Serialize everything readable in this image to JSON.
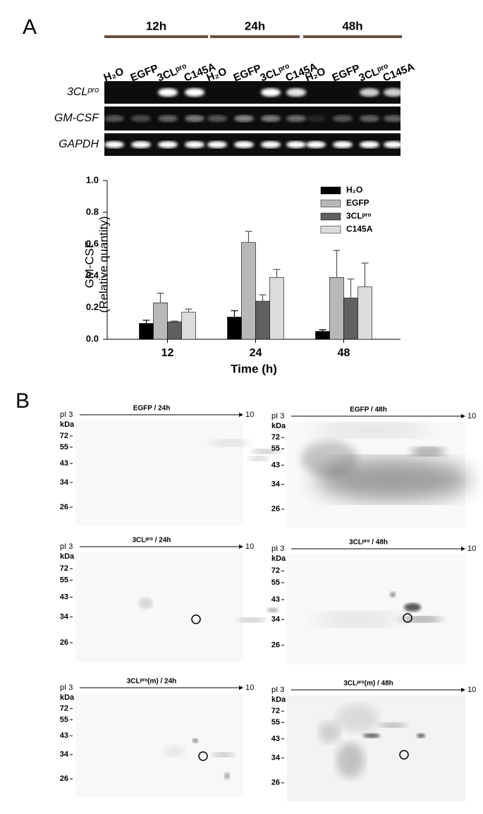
{
  "panel_a": {
    "letter": "A",
    "time_points": [
      "12h",
      "24h",
      "48h"
    ],
    "lanes": [
      "H₂O",
      "EGFP",
      "3CLᵖʳᵒ",
      "C145A"
    ],
    "rows": [
      "3CLᵖʳᵒ",
      "GM-CSF",
      "GAPDH"
    ]
  },
  "chart_data": {
    "type": "bar",
    "ylabel": [
      "GM-CSF",
      "(Relative quantity)"
    ],
    "xlabel": "Time (h)",
    "categories": [
      "12",
      "24",
      "48"
    ],
    "series": [
      {
        "name": "H₂O",
        "color": "#000000",
        "values": [
          0.1,
          0.14,
          0.05
        ],
        "errors": [
          0.02,
          0.04,
          0.01
        ]
      },
      {
        "name": "EGFP",
        "color": "#b8b8b8",
        "values": [
          0.23,
          0.61,
          0.39
        ],
        "errors": [
          0.06,
          0.07,
          0.17
        ]
      },
      {
        "name": "3CLᵖʳᵒ",
        "color": "#606060",
        "values": [
          0.11,
          0.24,
          0.26
        ],
        "errors": [
          0.005,
          0.04,
          0.12
        ]
      },
      {
        "name": "C145A",
        "color": "#dcdcdc",
        "values": [
          0.17,
          0.39,
          0.33
        ],
        "errors": [
          0.02,
          0.05,
          0.15
        ]
      }
    ],
    "ylim": [
      0,
      1
    ],
    "yticks": [
      {
        "value": 0,
        "label": "0.0"
      },
      0.2,
      0.4,
      0.6,
      0.8,
      {
        "value": 1,
        "label": "1.0"
      }
    ],
    "legend": "upper right"
  },
  "panel_b": {
    "letter": "B",
    "pi_start": "pI 3",
    "pi_end": "10",
    "unit": "kDa",
    "markers": [
      72,
      55,
      43,
      34,
      26
    ],
    "panels": [
      "EGFP / 24h",
      "EGFP / 48h",
      "3CLᵖʳᵒ / 24h",
      "3CLᵖʳᵒ / 48h",
      "3CLᵖʳᵒ(m) / 24h",
      "3CLᵖʳᵒ(m) / 48h"
    ]
  }
}
